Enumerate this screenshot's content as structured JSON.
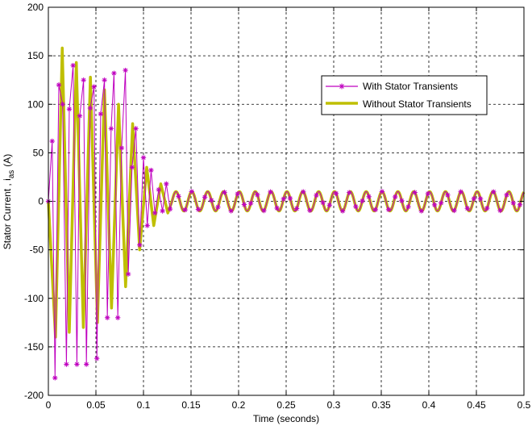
{
  "chart_data": {
    "type": "line",
    "title": "",
    "xlabel": "Time (seconds)",
    "ylabel_main": "Stator Current , i",
    "ylabel_sub": "as",
    "ylabel_unit": "(A)",
    "xlim": [
      0,
      0.5
    ],
    "ylim": [
      -200,
      200
    ],
    "xticks": [
      0,
      0.05,
      0.1,
      0.15,
      0.2,
      0.25,
      0.3,
      0.35,
      0.4,
      0.45,
      0.5
    ],
    "xtick_labels": [
      "0",
      "0.05",
      "0.1",
      "0.15",
      "0.2",
      "0.25",
      "0.3",
      "0.35",
      "0.4",
      "0.45",
      "0.5"
    ],
    "yticks": [
      -200,
      -150,
      -100,
      -50,
      0,
      50,
      100,
      150,
      200
    ],
    "ytick_labels": [
      "-200",
      "-150",
      "-100",
      "-50",
      "0",
      "50",
      "100",
      "150",
      "200"
    ],
    "grid": true,
    "legend_position": "top-right",
    "steady_state": {
      "start": 0.13,
      "amplitude": 10,
      "frequency_hz": 60
    },
    "series": [
      {
        "name": "With Stator Transients",
        "color": "#bf00bf",
        "marker": "asterisk",
        "x": [
          0,
          0.004,
          0.007,
          0.011,
          0.015,
          0.019,
          0.022,
          0.026,
          0.03,
          0.033,
          0.037,
          0.04,
          0.044,
          0.048,
          0.051,
          0.055,
          0.059,
          0.062,
          0.066,
          0.069,
          0.073,
          0.077,
          0.081,
          0.084,
          0.088,
          0.092,
          0.096,
          0.1,
          0.104,
          0.108,
          0.112,
          0.116,
          0.12,
          0.124,
          0.128
        ],
        "y": [
          0,
          62,
          -182,
          120,
          100,
          -168,
          95,
          140,
          -168,
          88,
          125,
          -168,
          96,
          118,
          -162,
          90,
          125,
          -120,
          75,
          132,
          -120,
          55,
          135,
          -75,
          35,
          75,
          -45,
          45,
          -25,
          32,
          -12,
          12,
          -10,
          18,
          -8
        ]
      },
      {
        "name": "Without Stator Transients",
        "color": "#bfbf00",
        "marker": "none",
        "x": [
          0,
          0.0075,
          0.0146,
          0.022,
          0.0294,
          0.0368,
          0.0442,
          0.0516,
          0.059,
          0.0664,
          0.0738,
          0.0812,
          0.0886,
          0.096,
          0.1034,
          0.1108,
          0.1182,
          0.1256,
          0.13
        ],
        "y": [
          0,
          -140,
          158,
          -135,
          143,
          -130,
          128,
          -125,
          115,
          -110,
          100,
          -88,
          80,
          -50,
          35,
          -25,
          18,
          -12,
          0
        ]
      }
    ]
  }
}
